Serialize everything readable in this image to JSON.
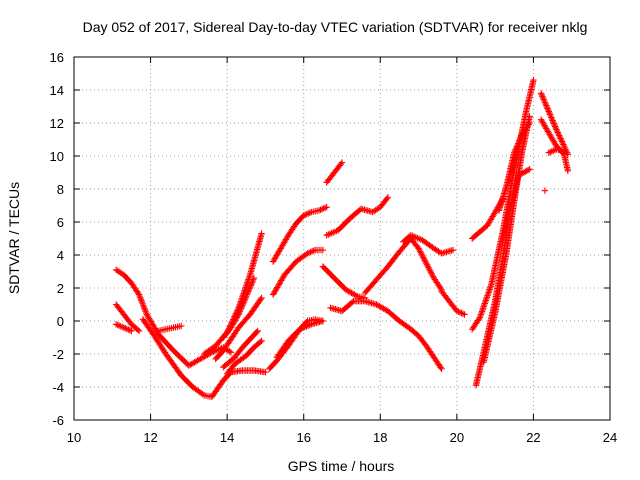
{
  "chart_data": {
    "type": "scatter",
    "title": "Day 052 of 2017, Sidereal Day-to-day VTEC variation (SDTVAR) for receiver nklg",
    "xlabel": "GPS time / hours",
    "ylabel": "SDTVAR / TECUs",
    "xlim": [
      10,
      24
    ],
    "ylim": [
      -6,
      16
    ],
    "xticks": [
      10,
      12,
      14,
      16,
      18,
      20,
      22,
      24
    ],
    "yticks": [
      -6,
      -4,
      -2,
      0,
      2,
      4,
      6,
      8,
      10,
      12,
      14,
      16
    ],
    "xtick_labels": [
      "10",
      "12",
      "14",
      "16",
      "18",
      "20",
      "22",
      "24"
    ],
    "ytick_labels": [
      "-6",
      "-4",
      "-2",
      "0",
      "2",
      "4",
      "6",
      "8",
      "10",
      "12",
      "14",
      "16"
    ],
    "grid": true,
    "marker": "plus",
    "color": "#ff0000",
    "series": [
      {
        "x": [
          11.1,
          11.3,
          11.5,
          11.7,
          11.9,
          12.2,
          12.6,
          13.0,
          13.3,
          13.6,
          13.9,
          14.1
        ],
        "y": [
          3.1,
          2.8,
          2.3,
          1.6,
          0.4,
          -0.8,
          -1.8,
          -2.7,
          -2.3,
          -1.9,
          -1.6,
          -1.9
        ]
      },
      {
        "x": [
          11.1,
          11.3,
          11.5,
          11.7
        ],
        "y": [
          1.0,
          0.4,
          -0.2,
          -0.6
        ]
      },
      {
        "x": [
          11.1,
          11.3,
          11.5
        ],
        "y": [
          -0.2,
          -0.4,
          -0.6
        ]
      },
      {
        "x": [
          11.8,
          12.1,
          12.4,
          12.8,
          13.1,
          13.4,
          13.6,
          13.9,
          14.1,
          14.4,
          14.7,
          15.0
        ],
        "y": [
          0.1,
          -0.9,
          -2.0,
          -3.3,
          -4.0,
          -4.5,
          -4.6,
          -3.6,
          -3.1,
          -3.0,
          -3.0,
          -3.1
        ]
      },
      {
        "x": [
          12.2,
          12.4,
          12.6,
          12.8
        ],
        "y": [
          -0.6,
          -0.5,
          -0.4,
          -0.3
        ]
      },
      {
        "x": [
          13.4,
          13.7,
          14.0,
          14.3,
          14.6,
          14.9
        ],
        "y": [
          -2.0,
          -1.5,
          -0.7,
          0.8,
          2.8,
          5.3
        ]
      },
      {
        "x": [
          13.7,
          13.9,
          14.1,
          14.3,
          14.6,
          14.9
        ],
        "y": [
          -2.3,
          -1.8,
          -1.1,
          -0.4,
          0.4,
          1.4
        ]
      },
      {
        "x": [
          13.9,
          14.2,
          14.4,
          14.6,
          14.8
        ],
        "y": [
          -2.8,
          -2.2,
          -1.6,
          -1.1,
          -0.6
        ]
      },
      {
        "x": [
          14.0,
          14.2,
          14.5,
          14.7,
          14.9
        ],
        "y": [
          -3.2,
          -2.6,
          -2.1,
          -1.6,
          -1.2
        ]
      },
      {
        "x": [
          13.9,
          14.1,
          14.3,
          14.5,
          14.7
        ],
        "y": [
          -1.0,
          -0.4,
          0.4,
          1.5,
          2.6
        ]
      },
      {
        "x": [
          15.1,
          15.3,
          15.6,
          15.9,
          16.1,
          16.3,
          16.5
        ],
        "y": [
          -2.9,
          -2.4,
          -1.5,
          -0.5,
          0.0,
          0.1,
          0.0
        ]
      },
      {
        "x": [
          15.3,
          15.6,
          15.9,
          16.2,
          16.5
        ],
        "y": [
          -2.2,
          -1.2,
          -0.5,
          -0.2,
          0.0
        ]
      },
      {
        "x": [
          15.2,
          15.4,
          15.6,
          15.8,
          16.0,
          16.2,
          16.4,
          16.6
        ],
        "y": [
          3.6,
          4.4,
          5.2,
          5.9,
          6.4,
          6.6,
          6.7,
          6.9
        ]
      },
      {
        "x": [
          15.2,
          15.5,
          15.8,
          16.1,
          16.3,
          16.5
        ],
        "y": [
          1.6,
          2.8,
          3.6,
          4.1,
          4.3,
          4.3
        ]
      },
      {
        "x": [
          16.6,
          16.8,
          17.0
        ],
        "y": [
          8.4,
          9.0,
          9.6
        ]
      },
      {
        "x": [
          16.6,
          16.9,
          17.2,
          17.5,
          17.8,
          18.0,
          18.2
        ],
        "y": [
          5.2,
          5.5,
          6.2,
          6.8,
          6.6,
          6.9,
          7.5
        ]
      },
      {
        "x": [
          16.5,
          16.8,
          17.1,
          17.4,
          17.6
        ],
        "y": [
          3.3,
          2.6,
          1.9,
          1.5,
          1.4
        ]
      },
      {
        "x": [
          16.7,
          17.0,
          17.3,
          17.6,
          17.9,
          18.2,
          18.5,
          18.8,
          19.0,
          19.2,
          19.4,
          19.6
        ],
        "y": [
          0.8,
          0.6,
          1.2,
          1.2,
          1.0,
          0.6,
          0.0,
          -0.5,
          -0.9,
          -1.5,
          -2.2,
          -2.9
        ]
      },
      {
        "x": [
          17.6,
          17.9,
          18.2,
          18.5,
          18.8,
          19.0,
          19.2,
          19.4,
          19.6
        ],
        "y": [
          1.7,
          2.5,
          3.3,
          4.2,
          5.0,
          4.4,
          3.5,
          2.6,
          1.9
        ]
      },
      {
        "x": [
          18.6,
          18.8,
          19.1,
          19.4,
          19.6,
          19.9
        ],
        "y": [
          4.8,
          5.2,
          4.9,
          4.4,
          4.1,
          4.3
        ]
      },
      {
        "x": [
          19.6,
          19.8,
          20.0,
          20.2
        ],
        "y": [
          1.8,
          1.2,
          0.6,
          0.4
        ]
      },
      {
        "x": [
          20.4,
          20.6,
          20.9,
          21.2,
          21.5,
          21.8,
          22.0
        ],
        "y": [
          -0.5,
          0.2,
          2.2,
          5.4,
          9.2,
          12.6,
          14.6
        ]
      },
      {
        "x": [
          20.5,
          20.7,
          21.0,
          21.2,
          21.4,
          21.6,
          21.9
        ],
        "y": [
          -3.9,
          -1.9,
          1.2,
          3.8,
          6.8,
          8.8,
          9.2
        ]
      },
      {
        "x": [
          20.7,
          21.0,
          21.3,
          21.5,
          21.7,
          21.9
        ],
        "y": [
          -2.5,
          0.5,
          4.2,
          7.3,
          10.2,
          12.4
        ]
      },
      {
        "x": [
          21.1,
          21.3,
          21.5,
          21.7,
          21.9
        ],
        "y": [
          6.7,
          8.2,
          10.2,
          11.3,
          12.0
        ]
      },
      {
        "x": [
          20.4,
          20.6,
          20.8,
          21.0,
          21.2
        ],
        "y": [
          5.0,
          5.4,
          5.8,
          6.6,
          7.4
        ]
      },
      {
        "x": [
          22.2,
          22.4,
          22.6,
          22.8,
          22.9
        ],
        "y": [
          13.8,
          12.7,
          11.6,
          10.6,
          10.1
        ]
      },
      {
        "x": [
          22.2,
          22.4,
          22.6,
          22.8,
          22.9
        ],
        "y": [
          12.2,
          11.4,
          10.6,
          10.1,
          9.1
        ]
      },
      {
        "x": [
          22.4,
          22.6,
          22.8
        ],
        "y": [
          10.2,
          10.4,
          10.3
        ]
      },
      {
        "x": [
          22.3
        ],
        "y": [
          7.9
        ]
      }
    ]
  }
}
